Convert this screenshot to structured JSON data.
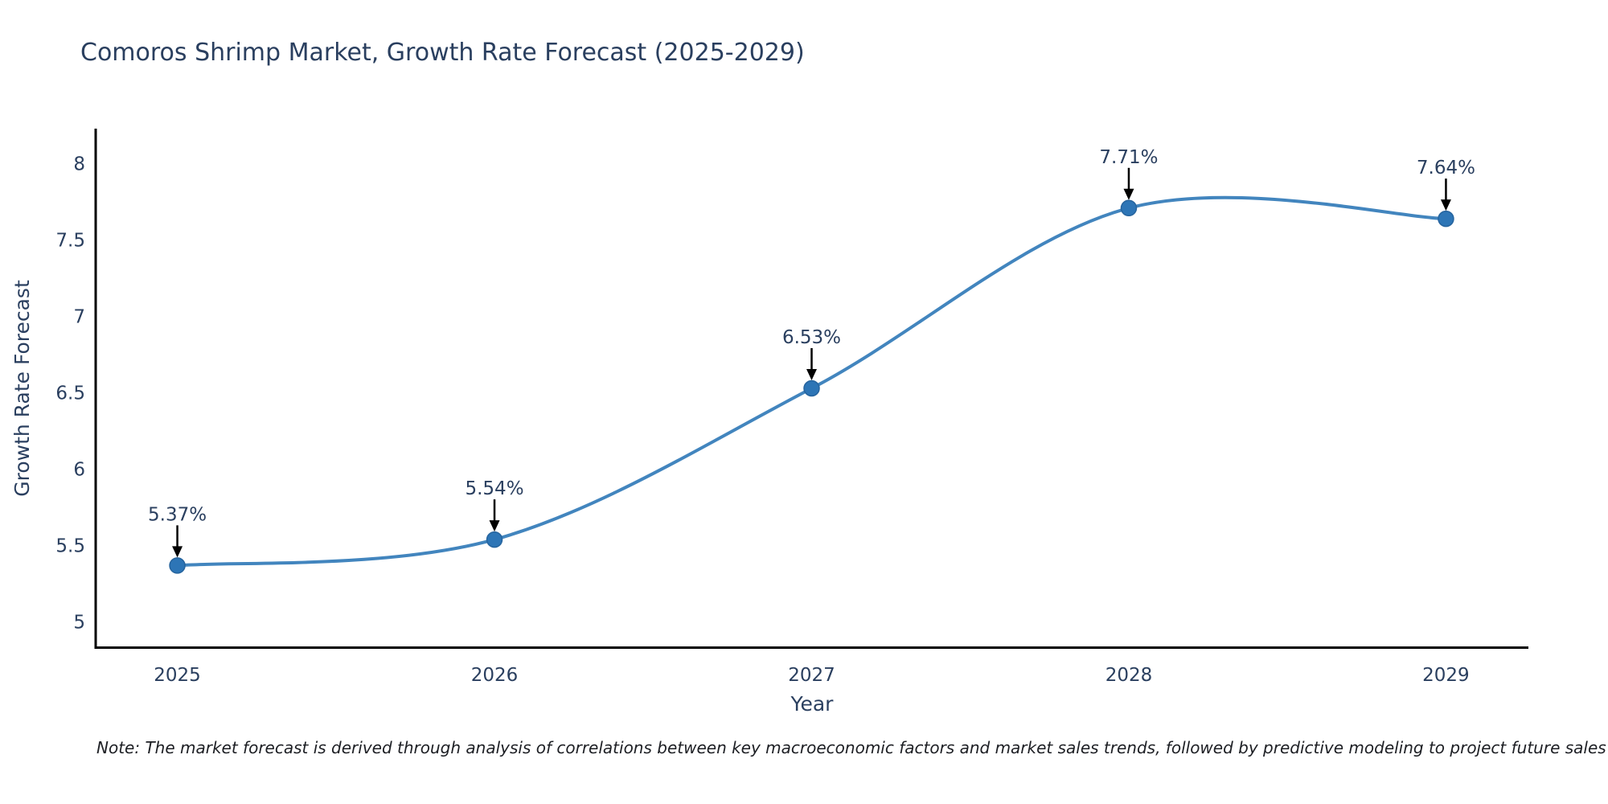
{
  "header": {
    "title": "Comoros Shrimp Market, Growth Rate Forecast (2025-2029)"
  },
  "chart_data": {
    "type": "line",
    "title": "Comoros Shrimp Market, Growth Rate Forecast (2025-2029)",
    "xlabel": "Year",
    "ylabel": "Growth Rate Forecast",
    "x": [
      2025,
      2026,
      2027,
      2028,
      2029
    ],
    "values": [
      5.37,
      5.54,
      6.53,
      7.71,
      7.64
    ],
    "point_labels": [
      "5.37%",
      "5.54%",
      "6.53%",
      "7.71%",
      "7.64%"
    ],
    "xtick_labels": [
      "2025",
      "2026",
      "2027",
      "2028",
      "2029"
    ],
    "yticks": [
      5,
      5.5,
      6,
      6.5,
      7,
      7.5,
      8
    ],
    "ytick_labels": [
      "5",
      "5.5",
      "6",
      "6.5",
      "7",
      "7.5",
      "8"
    ],
    "xlim": [
      2024.74,
      2029.26
    ],
    "ylim": [
      4.83,
      8.23
    ],
    "grid": false,
    "legend": "none",
    "line_shape": "spline",
    "colors": {
      "line": "#4285be",
      "marker": "#2d75b6",
      "marker_edge": "#26649e",
      "axis": "#000000",
      "text": "#2a3f5f",
      "annotation_arrow": "#000000"
    }
  },
  "footer": {
    "note": "Note: The market forecast is derived through analysis of correlations between key macroeconomic factors and market sales trends, followed by predictive modeling to project future sales"
  }
}
